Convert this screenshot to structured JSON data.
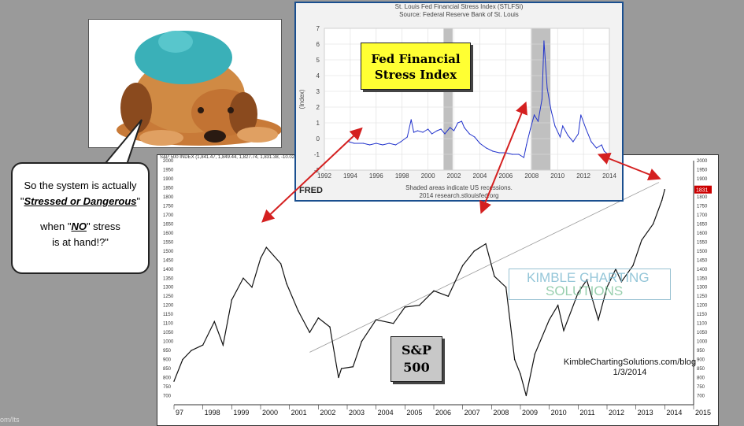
{
  "left_caption": "om/Its",
  "speech_bubble": {
    "line1": "So the system is actually",
    "line2_q1": "\"",
    "line2_em": "Stressed or Dangerous",
    "line2_q2": "\"",
    "line3_pre": "when \"",
    "line3_em": "NO",
    "line3_post": "\" stress",
    "line4": "is at hand!?\""
  },
  "sp_panel": {
    "header": "S&P 500 INDEX (1,841.47, 1,849.44, 1,827.74, 1,831.38, -10.0200)",
    "label_line1": "S&P",
    "label_line2": "500",
    "credit_line1": "KimbleChartingSolutions.com/blog",
    "credit_line2": "1/3/2014",
    "watermark_line1": "KIMBLE CHARTING",
    "watermark_line2": "SOLUTIONS",
    "last_value_badge": "1831"
  },
  "fred_panel": {
    "title": "St. Louis Fed Financial Stress Index (STLFSI)",
    "subtitle": "Source: Federal Reserve Bank of St. Louis",
    "label_line1": "Fed Financial",
    "label_line2": "Stress Index",
    "note_line1": "Shaded areas indicate US recessions.",
    "note_line2": "2014 research.stlouisfed.org",
    "logo": "FRED",
    "ylabel": "(Index)"
  },
  "colors": {
    "fred_border": "#1a4f8f",
    "fred_line": "#2233cc",
    "label_yellow": "#ffff33",
    "arrow_red": "#d42020",
    "recession_gray": "#c0c0c0"
  },
  "chart_data": [
    {
      "type": "line",
      "title": "St. Louis Fed Financial Stress Index (STLFSI)",
      "xlabel": "",
      "ylabel": "(Index)",
      "xlim": [
        1992,
        2014
      ],
      "ylim": [
        -2,
        7
      ],
      "x_ticks": [
        "1992",
        "1994",
        "1996",
        "1998",
        "2000",
        "2002",
        "2004",
        "2006",
        "2008",
        "2010",
        "2012",
        "2014"
      ],
      "y_ticks": [
        "-2",
        "-1",
        "0",
        "1",
        "2",
        "3",
        "4",
        "5",
        "6",
        "7"
      ],
      "grid": true,
      "recessions": [
        [
          2001.2,
          2001.9
        ],
        [
          2007.95,
          2009.45
        ]
      ],
      "series": [
        {
          "x": [
            1993.9,
            1994.3,
            1995.0,
            1995.5,
            1996.0,
            1996.5,
            1997.0,
            1997.5,
            1997.9,
            1998.4,
            1998.7,
            1998.9,
            1999.2,
            1999.6,
            2000.0,
            2000.3,
            2000.7,
            2001.0,
            2001.3,
            2001.7,
            2002.0,
            2002.3,
            2002.6,
            2002.8,
            2003.2,
            2003.6,
            2004.0,
            2004.5,
            2005.0,
            2005.5,
            2006.0,
            2006.5,
            2007.0,
            2007.4,
            2007.6,
            2007.9,
            2008.2,
            2008.5,
            2008.8,
            2008.95,
            2009.2,
            2009.5,
            2009.8,
            2010.2,
            2010.4,
            2010.8,
            2011.2,
            2011.6,
            2011.8,
            2012.2,
            2012.6,
            2013.0,
            2013.4,
            2013.6,
            2013.9
          ],
          "y": [
            -0.2,
            -0.3,
            -0.3,
            -0.4,
            -0.3,
            -0.4,
            -0.3,
            -0.4,
            -0.2,
            0.1,
            1.2,
            0.4,
            0.5,
            0.4,
            0.6,
            0.3,
            0.5,
            0.6,
            0.3,
            0.7,
            0.5,
            1.0,
            1.1,
            0.7,
            0.3,
            0.1,
            -0.3,
            -0.6,
            -0.8,
            -0.9,
            -0.9,
            -1.0,
            -1.0,
            -1.2,
            -0.4,
            0.6,
            1.5,
            1.1,
            2.5,
            6.2,
            3.2,
            1.8,
            0.8,
            0.1,
            0.8,
            0.2,
            -0.2,
            0.3,
            1.5,
            0.6,
            -0.2,
            -0.6,
            -0.4,
            -0.8,
            -1.0
          ]
        }
      ]
    },
    {
      "type": "line",
      "title": "S&P 500 INDEX",
      "xlabel": "",
      "ylabel": "",
      "xlim": [
        1997,
        2015
      ],
      "ylim": [
        650,
        2000
      ],
      "x_ticks": [
        "97",
        "1998",
        "1999",
        "2000",
        "2001",
        "2002",
        "2003",
        "2004",
        "2005",
        "2006",
        "2007",
        "2008",
        "2009",
        "2010",
        "2011",
        "2012",
        "2013",
        "2014",
        "2015"
      ],
      "y_ticks": [
        "700",
        "750",
        "800",
        "850",
        "900",
        "950",
        "1000",
        "1050",
        "1100",
        "1150",
        "1200",
        "1250",
        "1300",
        "1350",
        "1400",
        "1450",
        "1500",
        "1550",
        "1600",
        "1650",
        "1700",
        "1750",
        "1800",
        "1850",
        "1900",
        "1950",
        "2000"
      ],
      "grid": false,
      "series": [
        {
          "name": "S&P 500",
          "x": [
            1997.0,
            1997.3,
            1997.6,
            1998.0,
            1998.4,
            1998.7,
            1999.0,
            1999.4,
            1999.7,
            2000.0,
            2000.2,
            2000.7,
            2000.9,
            2001.3,
            2001.7,
            2002.0,
            2002.4,
            2002.7,
            2002.8,
            2003.2,
            2003.5,
            2004.0,
            2004.6,
            2005.0,
            2005.5,
            2006.0,
            2006.5,
            2007.0,
            2007.4,
            2007.8,
            2008.1,
            2008.5,
            2008.8,
            2009.0,
            2009.2,
            2009.5,
            2010.0,
            2010.3,
            2010.5,
            2011.0,
            2011.3,
            2011.7,
            2012.0,
            2012.3,
            2012.5,
            2012.9,
            2013.2,
            2013.6,
            2013.9,
            2014.0
          ],
          "y": [
            780,
            900,
            950,
            980,
            1110,
            980,
            1230,
            1350,
            1300,
            1460,
            1520,
            1430,
            1320,
            1170,
            1050,
            1130,
            1080,
            800,
            850,
            860,
            1000,
            1120,
            1100,
            1190,
            1200,
            1280,
            1250,
            1420,
            1500,
            1540,
            1360,
            1300,
            900,
            820,
            700,
            930,
            1120,
            1200,
            1060,
            1270,
            1340,
            1120,
            1300,
            1400,
            1330,
            1420,
            1560,
            1650,
            1780,
            1840
          ]
        },
        {
          "name": "trendline",
          "x": [
            2001.7,
            2013.8
          ],
          "y": [
            940,
            1880
          ]
        }
      ]
    }
  ]
}
